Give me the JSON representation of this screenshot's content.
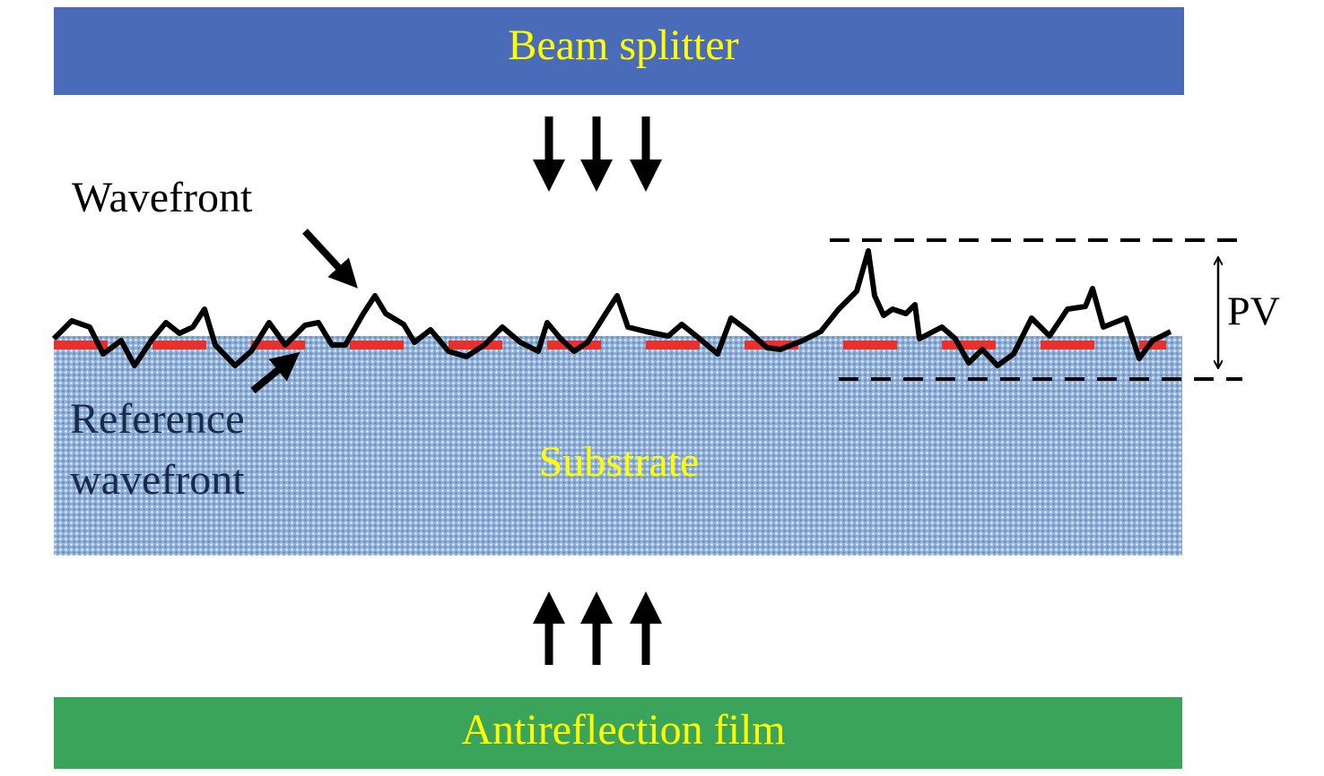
{
  "blocks": {
    "beam_splitter": "Beam splitter",
    "substrate": "Substrate",
    "antireflection_film": "Antireflection film"
  },
  "labels": {
    "wavefront": "Wavefront",
    "reference_wavefront": [
      "Reference",
      "wavefront"
    ],
    "pv": "PV"
  }
}
